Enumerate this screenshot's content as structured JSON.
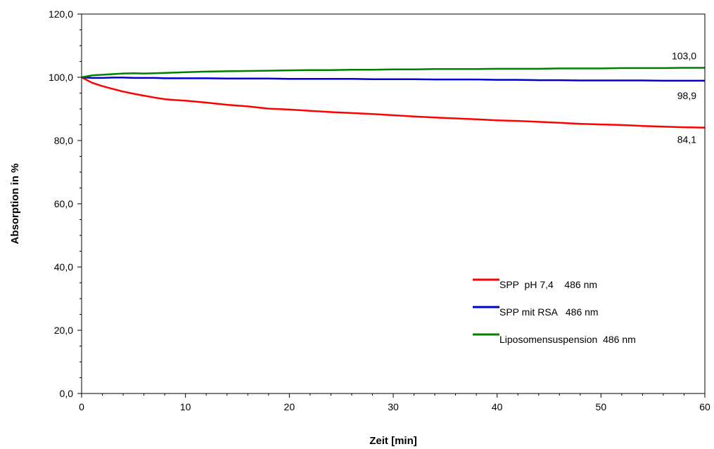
{
  "chart_data": {
    "type": "line",
    "title": "",
    "xlabel": "Zeit [min]",
    "ylabel": "Absorption in %",
    "xlim": [
      0,
      60
    ],
    "ylim": [
      0,
      120
    ],
    "x_ticks": [
      0,
      10,
      20,
      30,
      40,
      50,
      60
    ],
    "x_tick_labels": [
      "0",
      "10",
      "20",
      "30",
      "40",
      "50",
      "60"
    ],
    "y_ticks": [
      0,
      20,
      40,
      60,
      80,
      100,
      120
    ],
    "y_tick_labels": [
      "0,0",
      "20,0",
      "40,0",
      "60,0",
      "80,0",
      "100,0",
      "120,0"
    ],
    "grid": false,
    "legend_position": "bottom-right",
    "x": [
      0,
      1,
      2,
      3,
      4,
      5,
      6,
      7,
      8,
      9,
      10,
      12,
      14,
      16,
      18,
      20,
      22,
      24,
      26,
      28,
      30,
      32,
      34,
      36,
      38,
      40,
      42,
      44,
      46,
      48,
      50,
      52,
      54,
      56,
      58,
      60
    ],
    "series": [
      {
        "name": "SPP  pH 7,4    486 nm",
        "color": "#ff0000",
        "values": [
          100.0,
          98.3,
          97.2,
          96.3,
          95.5,
          94.8,
          94.2,
          93.6,
          93.1,
          92.8,
          92.6,
          92.0,
          91.3,
          90.8,
          90.1,
          89.8,
          89.4,
          89.0,
          88.7,
          88.4,
          88.0,
          87.6,
          87.3,
          87.0,
          86.7,
          86.4,
          86.2,
          85.9,
          85.6,
          85.3,
          85.1,
          84.9,
          84.6,
          84.4,
          84.2,
          84.1
        ],
        "end_label": "84,1"
      },
      {
        "name": "SPP mit RSA   486 nm",
        "color": "#0000cc",
        "values": [
          100.0,
          99.8,
          99.8,
          99.9,
          99.9,
          99.8,
          99.8,
          99.8,
          99.7,
          99.7,
          99.7,
          99.7,
          99.6,
          99.6,
          99.6,
          99.5,
          99.5,
          99.5,
          99.5,
          99.4,
          99.4,
          99.4,
          99.3,
          99.3,
          99.3,
          99.2,
          99.2,
          99.1,
          99.1,
          99.0,
          99.0,
          99.0,
          99.0,
          98.9,
          98.9,
          98.9
        ],
        "end_label": "98,9"
      },
      {
        "name": "Liposomensuspension  486 nm",
        "color": "#008000",
        "values": [
          100.0,
          100.6,
          100.8,
          101.0,
          101.2,
          101.3,
          101.2,
          101.3,
          101.4,
          101.5,
          101.6,
          101.8,
          101.9,
          102.0,
          102.1,
          102.2,
          102.3,
          102.3,
          102.4,
          102.4,
          102.5,
          102.5,
          102.6,
          102.6,
          102.6,
          102.7,
          102.7,
          102.7,
          102.8,
          102.8,
          102.8,
          102.9,
          102.9,
          102.9,
          103.0,
          103.0
        ],
        "end_label": "103,0"
      }
    ]
  }
}
